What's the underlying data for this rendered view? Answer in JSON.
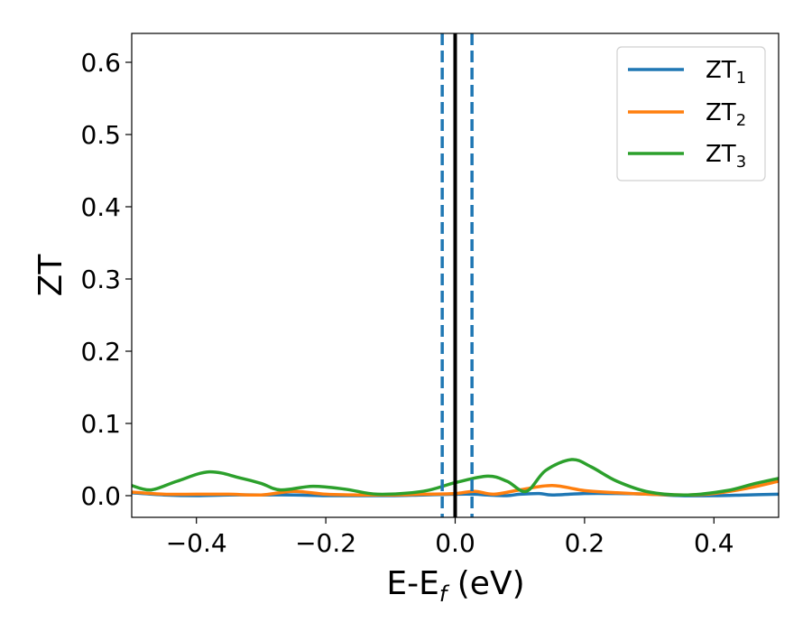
{
  "chart_data": {
    "type": "line",
    "title": "",
    "xlabel": {
      "main": "E-E",
      "sub": "f",
      "unit": " (eV)"
    },
    "ylabel": "ZT",
    "xlim": [
      -0.5,
      0.5
    ],
    "ylim": [
      -0.03,
      0.64
    ],
    "xticks": [
      -0.4,
      -0.2,
      0.0,
      0.2,
      0.4
    ],
    "xtick_labels": [
      "−0.4",
      "−0.2",
      "0.0",
      "0.2",
      "0.4"
    ],
    "yticks": [
      0.0,
      0.1,
      0.2,
      0.3,
      0.4,
      0.5,
      0.6
    ],
    "ytick_labels": [
      "0.0",
      "0.1",
      "0.2",
      "0.3",
      "0.4",
      "0.5",
      "0.6"
    ],
    "grid": false,
    "legend_position": "top-right",
    "vlines": [
      {
        "x": 0.0,
        "style": "solid",
        "color": "#000000"
      },
      {
        "x": -0.02,
        "style": "dashed",
        "color": "#1f77b4"
      },
      {
        "x": 0.026,
        "style": "dashed",
        "color": "#1f77b4"
      }
    ],
    "series": [
      {
        "name": "ZT",
        "sub": "1",
        "color": "#1f77b4",
        "x": [
          -0.5,
          -0.45,
          -0.4,
          -0.35,
          -0.3,
          -0.25,
          -0.2,
          -0.15,
          -0.1,
          -0.05,
          0.0,
          0.03,
          0.05,
          0.08,
          0.1,
          0.13,
          0.15,
          0.2,
          0.25,
          0.3,
          0.35,
          0.4,
          0.45,
          0.5
        ],
        "y": [
          0.004,
          0.001,
          0.0,
          0.001,
          0.001,
          0.001,
          0.0,
          0.0,
          0.0,
          0.001,
          0.002,
          0.002,
          0.001,
          0.0,
          0.002,
          0.003,
          0.001,
          0.003,
          0.003,
          0.002,
          0.0,
          0.0,
          0.001,
          0.002
        ]
      },
      {
        "name": "ZT",
        "sub": "2",
        "color": "#ff7f0e",
        "x": [
          -0.5,
          -0.45,
          -0.4,
          -0.35,
          -0.3,
          -0.25,
          -0.2,
          -0.15,
          -0.1,
          -0.05,
          0.0,
          0.03,
          0.06,
          0.1,
          0.15,
          0.2,
          0.25,
          0.3,
          0.36,
          0.4,
          0.45,
          0.5
        ],
        "y": [
          0.005,
          0.002,
          0.002,
          0.002,
          0.001,
          0.006,
          0.002,
          0.001,
          0.001,
          0.002,
          0.003,
          0.006,
          0.002,
          0.008,
          0.014,
          0.007,
          0.004,
          0.002,
          0.001,
          0.003,
          0.01,
          0.02
        ]
      },
      {
        "name": "ZT",
        "sub": "3",
        "color": "#2ca02c",
        "x": [
          -0.5,
          -0.47,
          -0.43,
          -0.38,
          -0.33,
          -0.3,
          -0.27,
          -0.22,
          -0.17,
          -0.12,
          -0.05,
          0.0,
          0.05,
          0.08,
          0.11,
          0.14,
          0.18,
          0.21,
          0.25,
          0.3,
          0.36,
          0.42,
          0.46,
          0.5
        ],
        "y": [
          0.014,
          0.008,
          0.02,
          0.033,
          0.024,
          0.017,
          0.008,
          0.013,
          0.009,
          0.002,
          0.006,
          0.018,
          0.027,
          0.02,
          0.006,
          0.035,
          0.05,
          0.04,
          0.02,
          0.005,
          0.001,
          0.007,
          0.016,
          0.024
        ]
      }
    ]
  }
}
